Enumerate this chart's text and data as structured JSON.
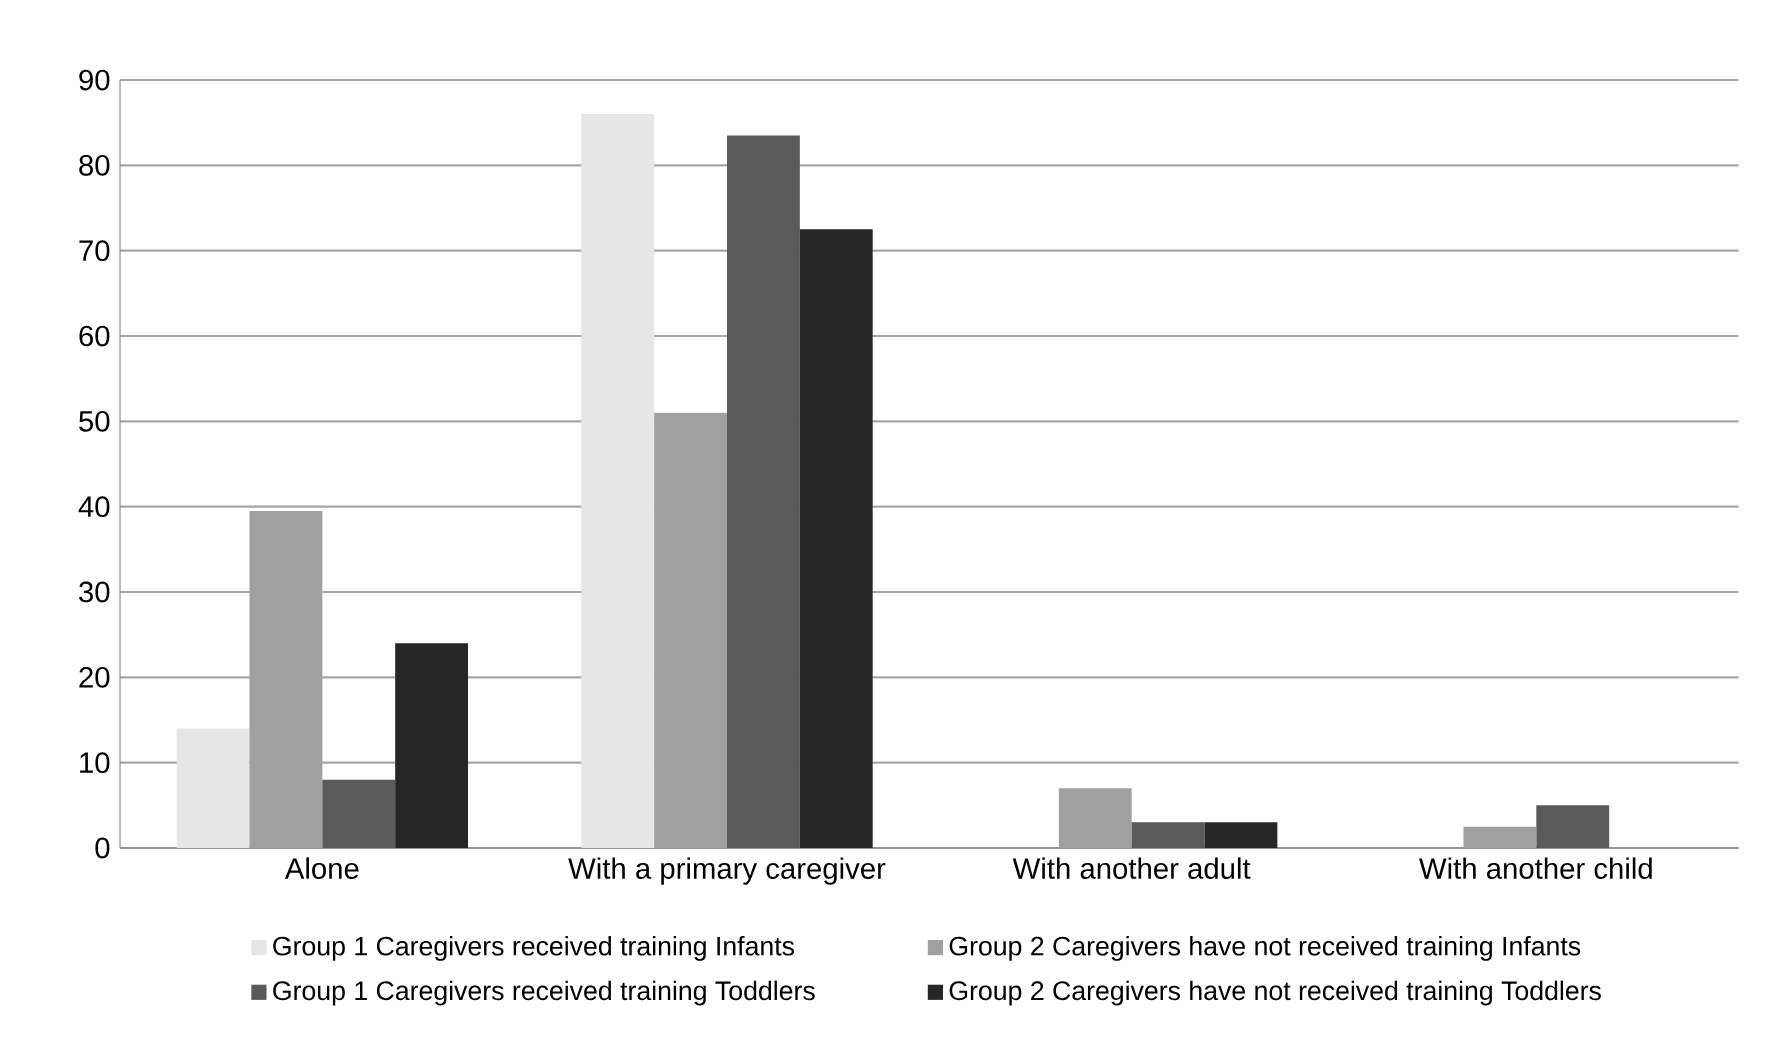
{
  "chart_data": {
    "type": "bar",
    "categories": [
      "Alone",
      "With a primary caregiver",
      "With another adult",
      "With another child"
    ],
    "series": [
      {
        "name": "Group 1 Caregivers received training Infants",
        "color": "#e6e6e6",
        "values": [
          14,
          86,
          0,
          0
        ]
      },
      {
        "name": "Group 2 Caregivers have not received training Infants",
        "color": "#a0a0a0",
        "values": [
          39.5,
          51,
          7,
          2.5
        ]
      },
      {
        "name": "Group 1 Caregivers received training Toddlers",
        "color": "#5a5a5a",
        "values": [
          8,
          83.5,
          3,
          5
        ]
      },
      {
        "name": "Group 2 Caregivers have not received training  Toddlers",
        "color": "#262626",
        "values": [
          24,
          72.5,
          3,
          0
        ]
      }
    ],
    "ylim": [
      0,
      90
    ],
    "yticks": [
      0,
      10,
      20,
      30,
      40,
      50,
      60,
      70,
      80,
      90
    ],
    "grid": "y",
    "legend": "bottom"
  }
}
